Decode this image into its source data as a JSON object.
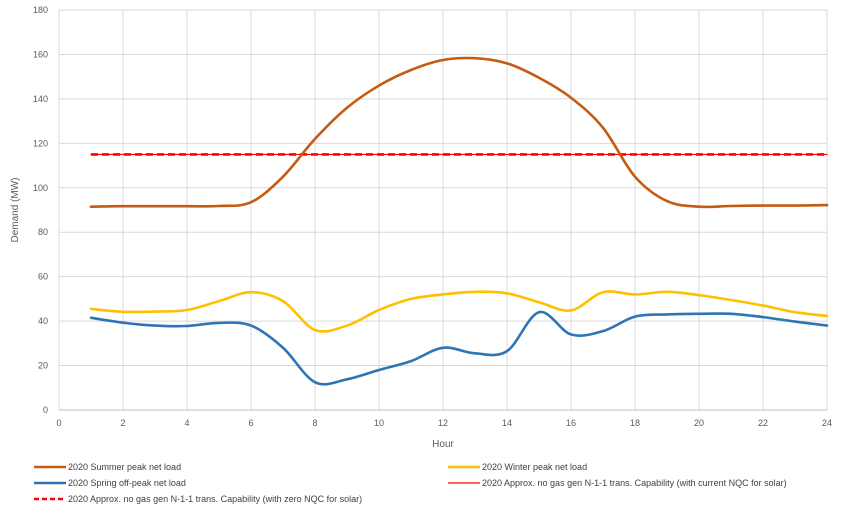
{
  "chart_data": {
    "type": "line",
    "title": "",
    "xlabel": "Hour",
    "ylabel": "Demand (MW)",
    "xlim": [
      0,
      24
    ],
    "ylim": [
      0,
      180
    ],
    "x_ticks": [
      0,
      2,
      4,
      6,
      8,
      10,
      12,
      14,
      16,
      18,
      20,
      22,
      24
    ],
    "y_ticks": [
      0,
      20,
      40,
      60,
      80,
      100,
      120,
      140,
      160,
      180
    ],
    "grid": "vertical and horizontal",
    "legend_position": "bottom",
    "x": [
      1,
      2,
      3,
      4,
      5,
      6,
      7,
      8,
      9,
      10,
      11,
      12,
      13,
      14,
      15,
      16,
      17,
      18,
      19,
      20,
      21,
      22,
      23,
      24
    ],
    "series": [
      {
        "name": "2020 Summer peak net load",
        "color": "#C55A11",
        "style": "solid",
        "values": [
          91.5,
          91.7,
          91.7,
          91.7,
          91.8,
          93.5,
          105,
          122,
          136,
          146,
          153,
          157.5,
          158.3,
          156,
          149.5,
          140.5,
          127,
          105,
          94,
          91.5,
          91.8,
          92,
          92,
          92.2
        ]
      },
      {
        "name": "2020 Winter peak net load",
        "color": "#FFC000",
        "style": "solid",
        "values": [
          45.5,
          44.2,
          44.3,
          45,
          49,
          53,
          49,
          36,
          38,
          45,
          50,
          52,
          53.2,
          52.5,
          48.5,
          44.8,
          53,
          52,
          53.2,
          51.7,
          49.5,
          47,
          44,
          42.3
        ]
      },
      {
        "name": "2020 Spring off-peak net load",
        "color": "#2E75B6",
        "style": "solid",
        "values": [
          41.5,
          39.3,
          38,
          37.8,
          39.2,
          38,
          28,
          12.5,
          13.8,
          18,
          22,
          28,
          25.5,
          26.5,
          44,
          34,
          35.5,
          42,
          43,
          43.3,
          43.3,
          41.8,
          39.8,
          38
        ]
      },
      {
        "name": "2020 Approx. no gas gen N-1-1 trans. Capability (with current NQC for solar)",
        "color": "#FF0000",
        "style": "solid",
        "values": [
          115,
          115,
          115,
          115,
          115,
          115,
          115,
          115,
          115,
          115,
          115,
          115,
          115,
          115,
          115,
          115,
          115,
          115,
          115,
          115,
          115,
          115,
          115,
          115
        ]
      },
      {
        "name": "2020 Approx. no gas gen N-1-1 trans. Capability (with zero NQC for solar)",
        "color": "#FF0000",
        "style": "dashed",
        "values": [
          115,
          115,
          115,
          115,
          115,
          115,
          115,
          115,
          115,
          115,
          115,
          115,
          115,
          115,
          115,
          115,
          115,
          115,
          115,
          115,
          115,
          115,
          115,
          115
        ]
      }
    ]
  }
}
